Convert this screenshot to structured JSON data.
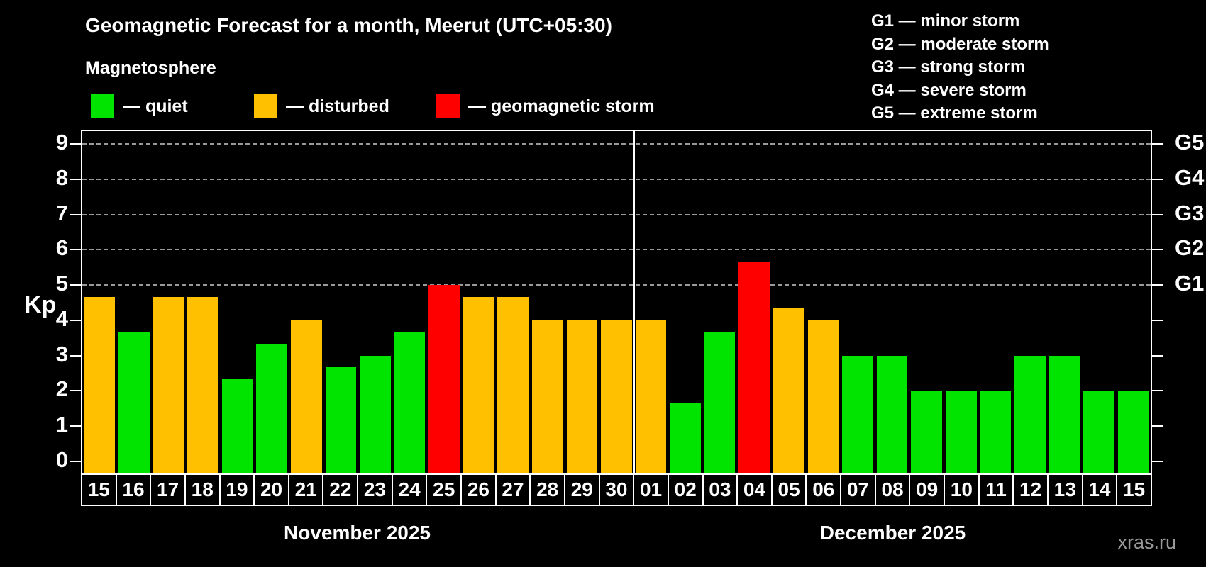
{
  "title": "Geomagnetic Forecast for a month, Meerut (UTC+05:30)",
  "subtitle": "Magnetosphere",
  "legend": {
    "items": [
      {
        "label": "— quiet",
        "status": "quiet",
        "color": "#00e400"
      },
      {
        "label": "— disturbed",
        "status": "disturbed",
        "color": "#ffc000"
      },
      {
        "label": "— geomagnetic storm",
        "status": "storm",
        "color": "#ff0000"
      }
    ]
  },
  "g_legend": [
    "G1 — minor storm",
    "G2 — moderate storm",
    "G3 — strong storm",
    "G4 — severe storm",
    "G5 — extreme storm"
  ],
  "watermark": "xras.ru",
  "chart_data": {
    "type": "bar",
    "title": "Geomagnetic Forecast for a month, Meerut (UTC+05:30)",
    "ylabel": "Kp",
    "ylim": [
      -0.34,
      9.36
    ],
    "yticks": [
      0,
      1,
      2,
      3,
      4,
      5,
      6,
      7,
      8,
      9
    ],
    "gridlines_at": [
      5,
      6,
      7,
      8,
      9
    ],
    "grid": "dashed",
    "legend_position": "top",
    "right_axis": [
      {
        "kp": 5,
        "label": "G1"
      },
      {
        "kp": 6,
        "label": "G2"
      },
      {
        "kp": 7,
        "label": "G3"
      },
      {
        "kp": 8,
        "label": "G4"
      },
      {
        "kp": 9,
        "label": "G5"
      }
    ],
    "colors": {
      "quiet": "#00e400",
      "disturbed": "#ffc000",
      "storm": "#ff0000"
    },
    "months": [
      {
        "label": "November 2025",
        "days": [
          {
            "day": "15",
            "kp": 4.67,
            "status": "disturbed"
          },
          {
            "day": "16",
            "kp": 3.67,
            "status": "quiet"
          },
          {
            "day": "17",
            "kp": 4.67,
            "status": "disturbed"
          },
          {
            "day": "18",
            "kp": 4.67,
            "status": "disturbed"
          },
          {
            "day": "19",
            "kp": 2.33,
            "status": "quiet"
          },
          {
            "day": "20",
            "kp": 3.33,
            "status": "quiet"
          },
          {
            "day": "21",
            "kp": 4.0,
            "status": "disturbed"
          },
          {
            "day": "22",
            "kp": 2.67,
            "status": "quiet"
          },
          {
            "day": "23",
            "kp": 3.0,
            "status": "quiet"
          },
          {
            "day": "24",
            "kp": 3.67,
            "status": "quiet"
          },
          {
            "day": "25",
            "kp": 5.0,
            "status": "storm"
          },
          {
            "day": "26",
            "kp": 4.67,
            "status": "disturbed"
          },
          {
            "day": "27",
            "kp": 4.67,
            "status": "disturbed"
          },
          {
            "day": "28",
            "kp": 4.0,
            "status": "disturbed"
          },
          {
            "day": "29",
            "kp": 4.0,
            "status": "disturbed"
          },
          {
            "day": "30",
            "kp": 4.0,
            "status": "disturbed"
          }
        ]
      },
      {
        "label": "December 2025",
        "days": [
          {
            "day": "01",
            "kp": 4.0,
            "status": "disturbed"
          },
          {
            "day": "02",
            "kp": 1.67,
            "status": "quiet"
          },
          {
            "day": "03",
            "kp": 3.67,
            "status": "quiet"
          },
          {
            "day": "04",
            "kp": 5.67,
            "status": "storm"
          },
          {
            "day": "05",
            "kp": 4.33,
            "status": "disturbed"
          },
          {
            "day": "06",
            "kp": 4.0,
            "status": "disturbed"
          },
          {
            "day": "07",
            "kp": 3.0,
            "status": "quiet"
          },
          {
            "day": "08",
            "kp": 3.0,
            "status": "quiet"
          },
          {
            "day": "09",
            "kp": 2.0,
            "status": "quiet"
          },
          {
            "day": "10",
            "kp": 2.0,
            "status": "quiet"
          },
          {
            "day": "11",
            "kp": 2.0,
            "status": "quiet"
          },
          {
            "day": "12",
            "kp": 3.0,
            "status": "quiet"
          },
          {
            "day": "13",
            "kp": 3.0,
            "status": "quiet"
          },
          {
            "day": "14",
            "kp": 2.0,
            "status": "quiet"
          },
          {
            "day": "15",
            "kp": 2.0,
            "status": "quiet"
          }
        ]
      }
    ]
  }
}
